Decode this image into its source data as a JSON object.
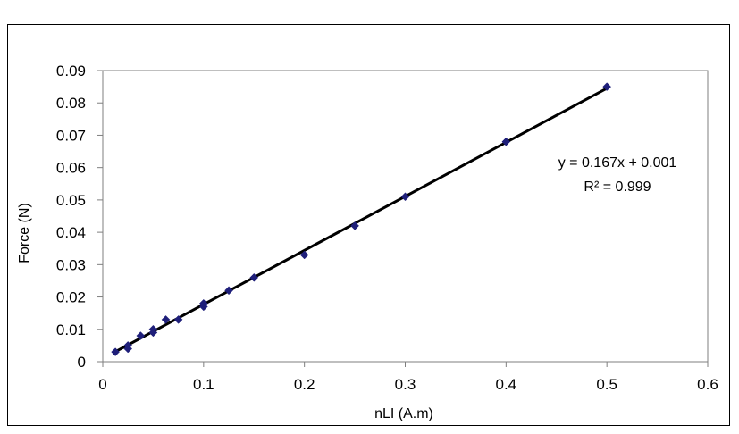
{
  "chart_data": {
    "type": "scatter",
    "xlabel": "nLI (A.m)",
    "ylabel": "Force (N)",
    "xlim": [
      0,
      0.6
    ],
    "ylim": [
      0,
      0.09
    ],
    "x_ticks": [
      "0",
      "0.1",
      "0.2",
      "0.3",
      "0.4",
      "0.5",
      "0.6"
    ],
    "y_ticks": [
      "0",
      "0.01",
      "0.02",
      "0.03",
      "0.04",
      "0.05",
      "0.06",
      "0.07",
      "0.08",
      "0.09"
    ],
    "grid": false,
    "marker_color": "#1f1f7a",
    "trendline_color": "#000000",
    "points": [
      {
        "x": 0.0125,
        "y": 0.003
      },
      {
        "x": 0.025,
        "y": 0.004
      },
      {
        "x": 0.025,
        "y": 0.005
      },
      {
        "x": 0.0375,
        "y": 0.008
      },
      {
        "x": 0.05,
        "y": 0.009
      },
      {
        "x": 0.05,
        "y": 0.01
      },
      {
        "x": 0.0625,
        "y": 0.013
      },
      {
        "x": 0.075,
        "y": 0.013
      },
      {
        "x": 0.1,
        "y": 0.017
      },
      {
        "x": 0.1,
        "y": 0.018
      },
      {
        "x": 0.125,
        "y": 0.022
      },
      {
        "x": 0.15,
        "y": 0.026
      },
      {
        "x": 0.2,
        "y": 0.033
      },
      {
        "x": 0.25,
        "y": 0.042
      },
      {
        "x": 0.3,
        "y": 0.051
      },
      {
        "x": 0.4,
        "y": 0.068
      },
      {
        "x": 0.5,
        "y": 0.085
      }
    ],
    "trendline": {
      "x_range": [
        0.0125,
        0.5
      ],
      "slope": 0.167,
      "intercept": 0.001,
      "equation": "y = 0.167x + 0.001",
      "r_squared": "R² = 0.999"
    }
  }
}
